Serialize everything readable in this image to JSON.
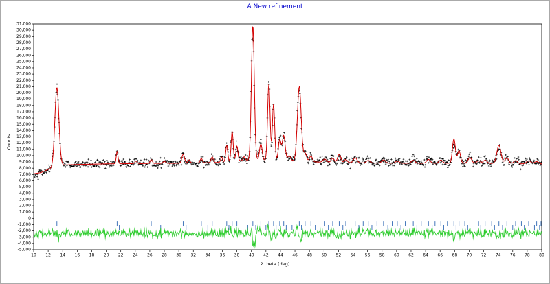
{
  "window": {
    "background": "#ffffff",
    "border_color": "#aaaaaa"
  },
  "chart_data": {
    "type": "line",
    "title": "A New refinement",
    "title_color": "#0000cc",
    "xlabel": "2 theta (deg)",
    "ylabel": "Counts",
    "xlim": [
      10,
      80
    ],
    "ylim": [
      -5000,
      31000
    ],
    "x_ticks": [
      10,
      12,
      14,
      16,
      18,
      20,
      22,
      24,
      26,
      28,
      30,
      32,
      34,
      36,
      38,
      40,
      42,
      44,
      46,
      48,
      50,
      52,
      54,
      56,
      58,
      60,
      62,
      64,
      66,
      68,
      70,
      72,
      74,
      76,
      78,
      80
    ],
    "y_ticks": [
      -5000,
      -4000,
      -3000,
      -2000,
      -1000,
      0,
      1000,
      2000,
      3000,
      4000,
      5000,
      6000,
      7000,
      8000,
      9000,
      10000,
      11000,
      12000,
      13000,
      14000,
      15000,
      16000,
      17000,
      18000,
      19000,
      20000,
      21000,
      22000,
      23000,
      24000,
      25000,
      26000,
      27000,
      28000,
      29000,
      30000,
      31000
    ],
    "grid": false,
    "legend": "none",
    "axis_color": "#000000",
    "series": [
      {
        "name": "observed",
        "render": "points",
        "marker": "plus",
        "color": "#000000"
      },
      {
        "name": "calculated",
        "render": "line",
        "color": "#d40000"
      },
      {
        "name": "difference",
        "render": "line",
        "color": "#2ecc2e",
        "offset": -2400
      },
      {
        "name": "reflection-positions",
        "render": "ticks",
        "color": "#4477bb"
      }
    ],
    "background_points": [
      [
        10,
        7100
      ],
      [
        11,
        7300
      ],
      [
        12,
        7800
      ],
      [
        13,
        8200
      ],
      [
        14,
        8500
      ],
      [
        16,
        8600
      ],
      [
        20,
        8700
      ],
      [
        25,
        8750
      ],
      [
        30,
        8800
      ],
      [
        35,
        8900
      ],
      [
        40,
        9300
      ],
      [
        45,
        9200
      ],
      [
        50,
        8950
      ],
      [
        55,
        8850
      ],
      [
        60,
        8800
      ],
      [
        65,
        8800
      ],
      [
        70,
        8800
      ],
      [
        75,
        8750
      ],
      [
        80,
        8650
      ]
    ],
    "peak_format": "[two_theta, amplitude_counts, sigma_deg]",
    "peaks": [
      [
        13.2,
        12600,
        0.28
      ],
      [
        21.5,
        2000,
        0.12
      ],
      [
        24.1,
        400,
        0.15
      ],
      [
        26.2,
        600,
        0.15
      ],
      [
        28.0,
        300,
        0.2
      ],
      [
        30.6,
        1400,
        0.18
      ],
      [
        31.4,
        500,
        0.15
      ],
      [
        33.1,
        700,
        0.15
      ],
      [
        34.6,
        900,
        0.15
      ],
      [
        35.9,
        800,
        0.12
      ],
      [
        36.6,
        2600,
        0.14
      ],
      [
        37.35,
        4800,
        0.14
      ],
      [
        38.0,
        2400,
        0.14
      ],
      [
        39.0,
        600,
        0.15
      ],
      [
        40.2,
        21500,
        0.2
      ],
      [
        41.3,
        2600,
        0.18
      ],
      [
        42.4,
        12200,
        0.17
      ],
      [
        43.05,
        9000,
        0.16
      ],
      [
        43.9,
        3300,
        0.18
      ],
      [
        44.45,
        4000,
        0.2
      ],
      [
        45.2,
        800,
        0.2
      ],
      [
        46.6,
        11900,
        0.26
      ],
      [
        47.4,
        1300,
        0.2
      ],
      [
        48.2,
        900,
        0.2
      ],
      [
        50.1,
        500,
        0.25
      ],
      [
        51.2,
        700,
        0.2
      ],
      [
        52.1,
        1300,
        0.22
      ],
      [
        53.0,
        500,
        0.2
      ],
      [
        54.3,
        800,
        0.25
      ],
      [
        56.1,
        400,
        0.25
      ],
      [
        58.2,
        500,
        0.25
      ],
      [
        60.1,
        350,
        0.25
      ],
      [
        62.3,
        450,
        0.25
      ],
      [
        64.4,
        600,
        0.25
      ],
      [
        66.1,
        500,
        0.25
      ],
      [
        67.9,
        3900,
        0.2
      ],
      [
        68.6,
        2000,
        0.2
      ],
      [
        70.1,
        900,
        0.25
      ],
      [
        71.3,
        400,
        0.25
      ],
      [
        72.2,
        500,
        0.25
      ],
      [
        74.1,
        2900,
        0.28
      ],
      [
        75.2,
        900,
        0.25
      ],
      [
        76.4,
        500,
        0.25
      ],
      [
        78.2,
        500,
        0.3
      ],
      [
        79.3,
        400,
        0.3
      ]
    ],
    "residual_peaks": [
      [
        13.0,
        400,
        0.12
      ],
      [
        13.4,
        -450,
        0.12
      ],
      [
        37.0,
        600,
        0.1
      ],
      [
        37.5,
        -500,
        0.12
      ],
      [
        40.0,
        800,
        0.1
      ],
      [
        40.35,
        -2300,
        0.13
      ],
      [
        41.0,
        500,
        0.15
      ],
      [
        42.3,
        900,
        0.1
      ],
      [
        42.7,
        -1000,
        0.12
      ],
      [
        43.3,
        -600,
        0.12
      ],
      [
        44.0,
        500,
        0.15
      ],
      [
        46.3,
        700,
        0.12
      ],
      [
        46.8,
        -1300,
        0.15
      ],
      [
        52.0,
        -400,
        0.2
      ],
      [
        67.9,
        -800,
        0.15
      ],
      [
        68.4,
        400,
        0.15
      ],
      [
        74.1,
        -700,
        0.2
      ]
    ],
    "reflection_tick_rows": [
      {
        "y_center": -800,
        "positions": [
          13.2,
          21.5,
          26.2,
          30.6,
          33.1,
          34.6,
          36.6,
          37.35,
          38.0,
          40.2,
          41.3,
          42.4,
          43.05,
          43.9,
          44.45,
          46.6,
          47.4,
          48.2,
          50.1,
          51.2,
          52.1,
          53.0,
          54.3,
          55.4,
          56.1,
          57.3,
          58.2,
          59.4,
          60.1,
          61.2,
          62.3,
          63.4,
          64.4,
          65.3,
          66.1,
          67.0,
          67.9,
          68.6,
          69.4,
          70.1,
          71.3,
          72.2,
          73.1,
          74.1,
          75.2,
          76.4,
          77.2,
          78.2,
          79.3,
          79.9
        ]
      },
      {
        "y_center": -1450,
        "positions": [
          21.8,
          27.5,
          31.0,
          34.0,
          36.9,
          39.5,
          40.6,
          42.0,
          43.4,
          44.8,
          45.6,
          46.9,
          48.8,
          50.6,
          52.6,
          54.8,
          56.6,
          58.8,
          60.6,
          62.8,
          64.9,
          66.5,
          68.2,
          69.8,
          71.6,
          73.5,
          74.6,
          76.0,
          77.6,
          79.0,
          79.7
        ]
      }
    ],
    "noise": {
      "seed": 42,
      "scale": 3.5
    },
    "sample_step_deg": 0.07
  }
}
